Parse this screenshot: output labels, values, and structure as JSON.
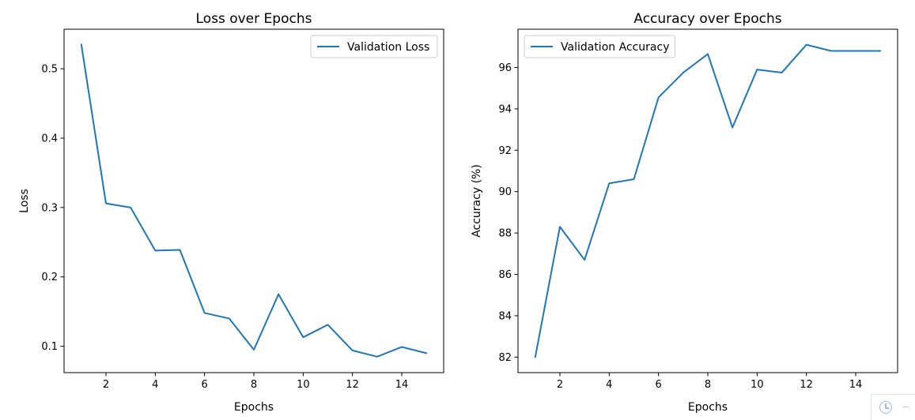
{
  "colors": {
    "line": "#1f77b4",
    "axes": "#000000",
    "legend_border": "#cccccc"
  },
  "corner_widget": {
    "icon": "clock-icon"
  },
  "chart_data": [
    {
      "type": "line",
      "title": "Loss over Epochs",
      "xlabel": "Epochs",
      "ylabel": "Loss",
      "legend_placement": "top-right",
      "grid": false,
      "xlim": [
        0.3,
        15.7
      ],
      "ylim": [
        0.062,
        0.557
      ],
      "xticks": [
        2,
        4,
        6,
        8,
        10,
        12,
        14
      ],
      "yticks": [
        0.1,
        0.2,
        0.3,
        0.4,
        0.5
      ],
      "x": [
        1,
        2,
        3,
        4,
        5,
        6,
        7,
        8,
        9,
        10,
        11,
        12,
        13,
        14,
        15
      ],
      "series": [
        {
          "name": "Validation Loss",
          "values": [
            0.535,
            0.306,
            0.3,
            0.238,
            0.239,
            0.148,
            0.14,
            0.095,
            0.175,
            0.113,
            0.131,
            0.094,
            0.085,
            0.099,
            0.09
          ]
        }
      ]
    },
    {
      "type": "line",
      "title": "Accuracy over Epochs",
      "xlabel": "Epochs",
      "ylabel": "Accuracy (%)",
      "legend_placement": "top-left",
      "grid": false,
      "xlim": [
        0.3,
        15.7
      ],
      "ylim": [
        81.25,
        97.85
      ],
      "xticks": [
        2,
        4,
        6,
        8,
        10,
        12,
        14
      ],
      "yticks": [
        82,
        84,
        86,
        88,
        90,
        92,
        94,
        96
      ],
      "x": [
        1,
        2,
        3,
        4,
        5,
        6,
        7,
        8,
        9,
        10,
        11,
        12,
        13,
        14,
        15
      ],
      "series": [
        {
          "name": "Validation Accuracy",
          "values": [
            82.0,
            88.3,
            86.7,
            90.4,
            90.6,
            94.55,
            95.75,
            96.65,
            93.1,
            95.9,
            95.75,
            97.1,
            96.8,
            96.8,
            96.8
          ]
        }
      ]
    }
  ]
}
